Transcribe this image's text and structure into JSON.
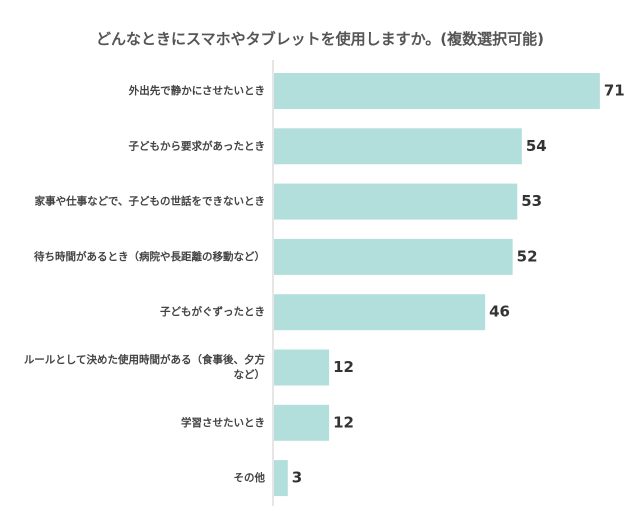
{
  "chart_data": {
    "type": "bar",
    "orientation": "horizontal",
    "title": "どんなときにスマホやタブレットを使用しますか。(複数選択可能)",
    "categories": [
      "外出先で静かにさせたいとき",
      "子どもから要求があったとき",
      "家事や仕事などで、子どもの世話をできないとき",
      "待ち時間があるとき（病院や長距離の移動など）",
      "子どもがぐずったとき",
      "ルールとして決めた使用時間がある（食事後、夕方など）",
      "学習させたいとき",
      "その他"
    ],
    "category_lines": [
      [
        "外出先で静かにさせたいとき"
      ],
      [
        "子どもから要求があったとき"
      ],
      [
        "家事や仕事などで、子どもの世話をできないとき"
      ],
      [
        "待ち時間があるとき（病院や長距離の移動など）"
      ],
      [
        "子どもがぐずったとき"
      ],
      [
        "ルールとして決めた使用時間がある（食事後、夕方",
        "など）"
      ],
      [
        "学習させたいとき"
      ],
      [
        "その他"
      ]
    ],
    "values": [
      71,
      54,
      53,
      52,
      46,
      12,
      12,
      3
    ],
    "xlim": [
      0,
      78
    ],
    "grid": false,
    "legend": "none",
    "bar_color": "#b2dfdb",
    "axis_color": "#cccccc"
  }
}
